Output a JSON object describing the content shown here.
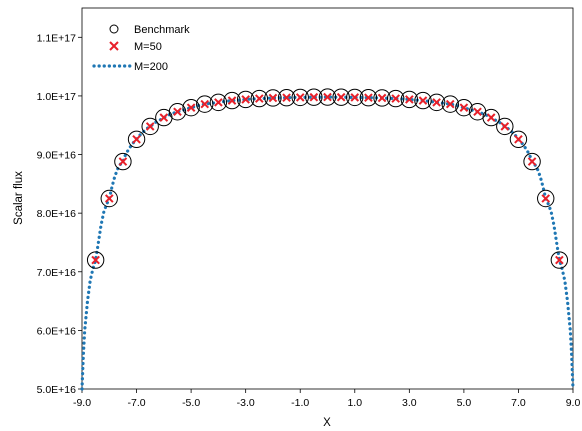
{
  "chart_data": {
    "type": "scatter",
    "xlabel": "X",
    "ylabel": "Scalar flux",
    "xlim": [
      -9.0,
      9.0
    ],
    "ylim": [
      5e+16,
      1.15e+17
    ],
    "xticks": [
      "-9.0",
      "-7.0",
      "-5.0",
      "-3.0",
      "-1.0",
      "1.0",
      "3.0",
      "5.0",
      "7.0",
      "9.0"
    ],
    "yticks": [
      "5.0E+16",
      "6.0E+16",
      "7.0E+16",
      "8.0E+16",
      "9.0E+16",
      "1.0E+17",
      "1.1E+17"
    ],
    "grid": false,
    "legend_position": "top-left",
    "series": [
      {
        "name": "Benchmark",
        "marker": "open-circle",
        "color": "#000000",
        "x": [
          -8.5,
          -8.0,
          -7.5,
          -7.0,
          -6.5,
          -6.0,
          -5.5,
          -5.0,
          -4.5,
          -4.0,
          -3.5,
          -3.0,
          -2.5,
          -2.0,
          -1.5,
          -1.0,
          -0.5,
          0.0,
          0.5,
          1.0,
          1.5,
          2.0,
          2.5,
          3.0,
          3.5,
          4.0,
          4.5,
          5.0,
          5.5,
          6.0,
          6.5,
          7.0,
          7.5,
          8.0,
          8.5
        ],
        "y": [
          7.2e+16,
          8.25e+16,
          8.88e+16,
          9.26e+16,
          9.48e+16,
          9.63e+16,
          9.73e+16,
          9.8e+16,
          9.86e+16,
          9.89e+16,
          9.92e+16,
          9.94e+16,
          9.955e+16,
          9.965e+16,
          9.97e+16,
          9.975e+16,
          9.978e+16,
          9.98e+16,
          9.978e+16,
          9.975e+16,
          9.97e+16,
          9.965e+16,
          9.955e+16,
          9.94e+16,
          9.92e+16,
          9.89e+16,
          9.86e+16,
          9.8e+16,
          9.73e+16,
          9.63e+16,
          9.48e+16,
          9.26e+16,
          8.88e+16,
          8.25e+16,
          7.2e+16
        ]
      },
      {
        "name": "M=50",
        "marker": "x",
        "color": "#e8202a",
        "x": [
          -8.5,
          -8.0,
          -7.5,
          -7.0,
          -6.5,
          -6.0,
          -5.5,
          -5.0,
          -4.5,
          -4.0,
          -3.5,
          -3.0,
          -2.5,
          -2.0,
          -1.5,
          -1.0,
          -0.5,
          0.0,
          0.5,
          1.0,
          1.5,
          2.0,
          2.5,
          3.0,
          3.5,
          4.0,
          4.5,
          5.0,
          5.5,
          6.0,
          6.5,
          7.0,
          7.5,
          8.0,
          8.5
        ],
        "y": [
          7.2e+16,
          8.25e+16,
          8.88e+16,
          9.26e+16,
          9.48e+16,
          9.63e+16,
          9.73e+16,
          9.8e+16,
          9.86e+16,
          9.89e+16,
          9.92e+16,
          9.94e+16,
          9.955e+16,
          9.965e+16,
          9.97e+16,
          9.975e+16,
          9.978e+16,
          9.98e+16,
          9.978e+16,
          9.975e+16,
          9.97e+16,
          9.965e+16,
          9.955e+16,
          9.94e+16,
          9.92e+16,
          9.89e+16,
          9.86e+16,
          9.8e+16,
          9.73e+16,
          9.63e+16,
          9.48e+16,
          9.26e+16,
          8.88e+16,
          8.25e+16,
          7.2e+16
        ]
      },
      {
        "name": "M=200",
        "marker": "dotted-line",
        "color": "#1f77b4",
        "x": [
          -9.0,
          -8.95,
          -8.9,
          -8.8,
          -8.7,
          -8.6,
          -8.5,
          -8.4,
          -8.3,
          -8.2,
          -8.1,
          -8.0,
          -7.9,
          -7.8,
          -7.7,
          -7.6,
          -7.5,
          -7.4,
          -7.3,
          -7.2,
          -7.1,
          -7.0,
          -6.9,
          -6.8,
          -6.7,
          -6.6,
          -6.5,
          -6.3,
          -6.1,
          -6.0,
          -5.8,
          -5.5,
          -5.2,
          -5.0,
          -4.7,
          -4.5,
          -4.2,
          -4.0,
          -3.7,
          -3.5,
          -3.2,
          -3.0,
          -2.7,
          -2.5,
          -2.2,
          -2.0,
          -1.7,
          -1.5,
          -1.2,
          -1.0,
          -0.7,
          -0.5,
          -0.2,
          0.0,
          0.2,
          0.5,
          0.7,
          1.0,
          1.2,
          1.5,
          1.7,
          2.0,
          2.2,
          2.5,
          2.7,
          3.0,
          3.2,
          3.5,
          3.7,
          4.0,
          4.2,
          4.5,
          4.7,
          5.0,
          5.2,
          5.5,
          5.8,
          6.0,
          6.1,
          6.3,
          6.5,
          6.6,
          6.7,
          6.8,
          6.9,
          7.0,
          7.1,
          7.2,
          7.3,
          7.4,
          7.5,
          7.6,
          7.7,
          7.8,
          7.9,
          8.0,
          8.1,
          8.2,
          8.3,
          8.4,
          8.5,
          8.6,
          8.7,
          8.8,
          8.9,
          8.95,
          9.0
        ],
        "y": [
          5e+16,
          5.6e+16,
          6e+16,
          6.5e+16,
          6.85e+16,
          7.05e+16,
          7.2e+16,
          7.5e+16,
          7.8e+16,
          8.02e+16,
          8.15e+16,
          8.25e+16,
          8.45e+16,
          8.62e+16,
          8.75e+16,
          8.83e+16,
          8.88e+16,
          9e+16,
          9.08e+16,
          9.15e+16,
          9.21e+16,
          9.26e+16,
          9.32e+16,
          9.37e+16,
          9.41e+16,
          9.45e+16,
          9.48e+16,
          9.55e+16,
          9.6e+16,
          9.63e+16,
          9.68e+16,
          9.73e+16,
          9.77e+16,
          9.8e+16,
          9.84e+16,
          9.86e+16,
          9.88e+16,
          9.89e+16,
          9.91e+16,
          9.92e+16,
          9.93e+16,
          9.94e+16,
          9.95e+16,
          9.955e+16,
          9.96e+16,
          9.965e+16,
          9.968e+16,
          9.97e+16,
          9.973e+16,
          9.975e+16,
          9.977e+16,
          9.978e+16,
          9.979e+16,
          9.98e+16,
          9.979e+16,
          9.978e+16,
          9.977e+16,
          9.975e+16,
          9.973e+16,
          9.97e+16,
          9.968e+16,
          9.965e+16,
          9.96e+16,
          9.955e+16,
          9.95e+16,
          9.94e+16,
          9.93e+16,
          9.92e+16,
          9.91e+16,
          9.89e+16,
          9.88e+16,
          9.86e+16,
          9.84e+16,
          9.8e+16,
          9.77e+16,
          9.73e+16,
          9.68e+16,
          9.63e+16,
          9.6e+16,
          9.55e+16,
          9.48e+16,
          9.45e+16,
          9.41e+16,
          9.37e+16,
          9.32e+16,
          9.26e+16,
          9.21e+16,
          9.15e+16,
          9.08e+16,
          9e+16,
          8.88e+16,
          8.83e+16,
          8.75e+16,
          8.62e+16,
          8.45e+16,
          8.25e+16,
          8.15e+16,
          8.02e+16,
          7.8e+16,
          7.5e+16,
          7.2e+16,
          7.05e+16,
          6.85e+16,
          6.5e+16,
          6e+16,
          5.6e+16,
          5e+16
        ]
      }
    ]
  }
}
